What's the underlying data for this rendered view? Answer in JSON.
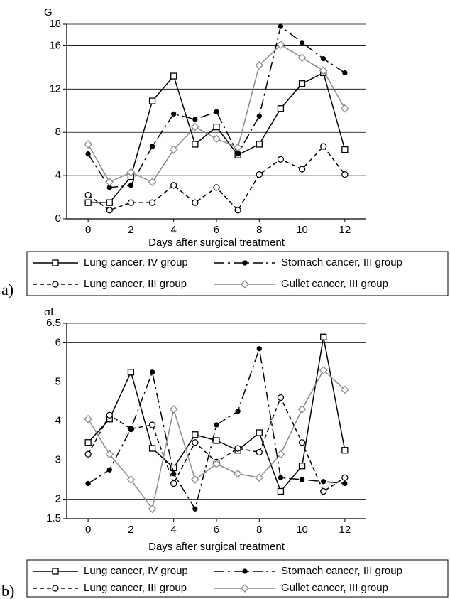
{
  "chart_data": [
    {
      "type": "line",
      "panel_label": "a)",
      "y_label": "G",
      "x_label": "Days after surgical treatment",
      "x": [
        0,
        1,
        2,
        3,
        4,
        5,
        6,
        7,
        8,
        9,
        10,
        11,
        12
      ],
      "xlim": [
        -1,
        13
      ],
      "xticks": [
        0,
        2,
        4,
        6,
        8,
        10,
        12
      ],
      "ylim": [
        0,
        18
      ],
      "yticks": [
        0,
        4,
        8,
        12,
        16,
        18
      ],
      "grid": true,
      "series": [
        {
          "name": "Lung cancer, IV group",
          "color": "#000000",
          "dash": "solid",
          "marker": "square",
          "values": [
            1.5,
            1.5,
            3.9,
            10.9,
            13.2,
            6.9,
            8.5,
            5.9,
            6.9,
            10.2,
            12.5,
            13.5,
            6.4
          ]
        },
        {
          "name": "Lung cancer, III group",
          "color": "#000000",
          "dash": "dashed",
          "marker": "circle",
          "values": [
            2.2,
            0.8,
            1.5,
            1.5,
            3.1,
            1.5,
            2.9,
            0.8,
            4.1,
            5.5,
            4.6,
            6.7,
            4.1
          ]
        },
        {
          "name": "Stomach cancer, III group",
          "color": "#000000",
          "dash": "longdash",
          "marker": "dot",
          "values": [
            6.0,
            2.9,
            3.1,
            6.7,
            9.7,
            9.2,
            9.9,
            6.0,
            9.5,
            17.8,
            16.3,
            14.8,
            13.5
          ]
        },
        {
          "name": "Gullet cancer, III group",
          "color": "#8c8c8c",
          "dash": "solid",
          "marker": "diamond",
          "values": [
            6.9,
            3.4,
            4.3,
            3.4,
            6.4,
            8.5,
            7.4,
            6.6,
            14.2,
            16.1,
            14.9,
            13.7,
            10.2
          ]
        }
      ]
    },
    {
      "type": "line",
      "panel_label": "b)",
      "y_label": "σL",
      "x_label": "Days after surgical treatment",
      "x": [
        0,
        1,
        2,
        3,
        4,
        5,
        6,
        7,
        8,
        9,
        10,
        11,
        12
      ],
      "xlim": [
        -1,
        13
      ],
      "xticks": [
        0,
        2,
        4,
        6,
        8,
        10,
        12
      ],
      "ylim": [
        1.5,
        6.5
      ],
      "yticks": [
        1.5,
        2,
        3,
        4,
        5,
        6,
        6.5
      ],
      "grid": true,
      "series": [
        {
          "name": "Lung cancer, IV group",
          "color": "#000000",
          "dash": "solid",
          "marker": "square",
          "values": [
            3.45,
            4.05,
            5.25,
            3.3,
            2.8,
            3.65,
            3.5,
            3.25,
            3.7,
            2.2,
            2.85,
            6.15,
            3.25
          ]
        },
        {
          "name": "Lung cancer, III group",
          "color": "#000000",
          "dash": "dashed",
          "marker": "circle",
          "values": [
            3.15,
            4.15,
            3.8,
            3.9,
            2.4,
            3.45,
            2.95,
            3.3,
            3.2,
            4.6,
            3.45,
            2.2,
            2.55
          ]
        },
        {
          "name": "Stomach cancer, III group",
          "color": "#000000",
          "dash": "longdash",
          "marker": "dot",
          "values": [
            2.4,
            2.75,
            3.8,
            5.25,
            2.65,
            1.75,
            3.9,
            4.25,
            5.85,
            2.55,
            2.5,
            2.45,
            2.4
          ]
        },
        {
          "name": "Gullet cancer, III group",
          "color": "#8c8c8c",
          "dash": "solid",
          "marker": "diamond",
          "values": [
            4.05,
            3.15,
            2.5,
            1.75,
            4.3,
            2.5,
            2.9,
            2.65,
            2.55,
            3.15,
            4.3,
            5.3,
            4.8
          ]
        }
      ]
    }
  ]
}
